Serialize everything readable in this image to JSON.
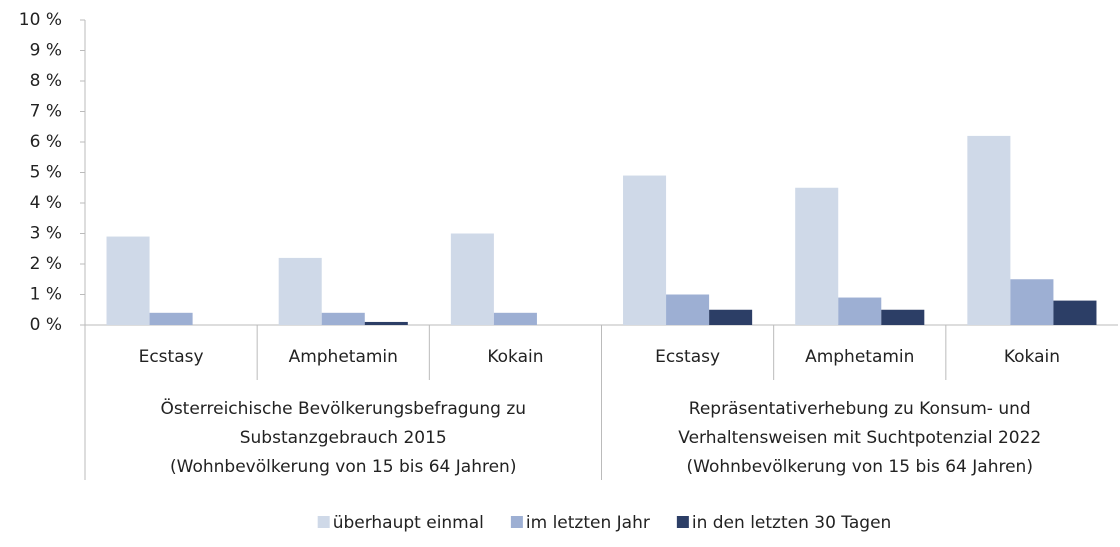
{
  "chart_data": {
    "type": "bar",
    "categories": [
      "Ecstasy",
      "Amphetamin",
      "Kokain",
      "Ecstasy",
      "Amphetamin",
      "Kokain"
    ],
    "groups": [
      {
        "lines": [
          "Österreichische Bevölkerungsbefragung zu",
          "Substanzgebrauch 2015",
          "(Wohnbevölkerung von 15 bis 64 Jahren)"
        ]
      },
      {
        "lines": [
          "Repräsentativerhebung zu Konsum- und",
          "Verhaltensweisen mit Suchtpotenzial 2022",
          "(Wohnbevölkerung von 15 bis 64 Jahren)"
        ]
      }
    ],
    "series": [
      {
        "name": "überhaupt einmal",
        "color": "#cfd9e8",
        "values": [
          2.9,
          2.2,
          3.0,
          4.9,
          4.5,
          6.2
        ]
      },
      {
        "name": "im letzten Jahr",
        "color": "#9dafd3",
        "values": [
          0.4,
          0.4,
          0.4,
          1.0,
          0.9,
          1.5
        ]
      },
      {
        "name": "in den letzten 30 Tagen",
        "color": "#2c3e66",
        "values": [
          null,
          0.1,
          null,
          0.5,
          0.5,
          0.8
        ]
      }
    ],
    "ylim": [
      0,
      10
    ],
    "yticks": [
      {
        "value": 0,
        "label": "0 %"
      },
      {
        "value": 1,
        "label": "1 %"
      },
      {
        "value": 2,
        "label": "2 %"
      },
      {
        "value": 3,
        "label": "3 %"
      },
      {
        "value": 4,
        "label": "4 %"
      },
      {
        "value": 5,
        "label": "5 %"
      },
      {
        "value": 6,
        "label": "6 %"
      },
      {
        "value": 7,
        "label": "7 %"
      },
      {
        "value": 8,
        "label": "8 %"
      },
      {
        "value": 9,
        "label": "9 %"
      },
      {
        "value": 10,
        "label": "10 %"
      }
    ],
    "grid": false,
    "legend": "bottom"
  }
}
